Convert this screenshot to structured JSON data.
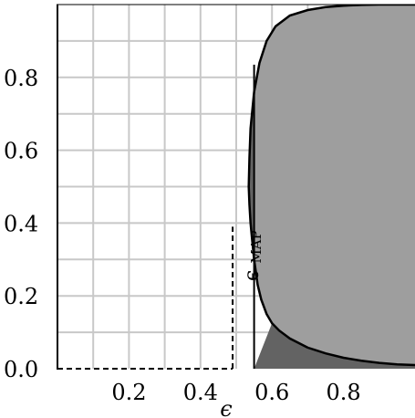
{
  "chart_data": {
    "type": "area",
    "title": "",
    "xlabel": "ϵ",
    "ylabel": "",
    "xlim": [
      0,
      1
    ],
    "ylim": [
      0,
      1
    ],
    "grid": true,
    "grid_step": 0.1,
    "x_ticks": [
      0.2,
      0.4,
      0.6,
      0.8
    ],
    "x_tick_labels": [
      "0.2",
      "0.4",
      "0.6",
      "0.8"
    ],
    "y_ticks": [
      0.0,
      0.2,
      0.4,
      0.6,
      0.8
    ],
    "y_tick_labels": [
      "0.0",
      "0.2",
      "0.4",
      "0.6",
      "0.8"
    ],
    "curve": {
      "x": [
        1.0,
        0.95,
        0.9,
        0.85,
        0.8,
        0.75,
        0.7,
        0.65,
        0.62,
        0.6,
        0.585,
        0.57,
        0.56,
        0.55,
        0.545,
        0.54,
        0.537,
        0.535,
        0.537,
        0.54,
        0.55,
        0.565,
        0.585,
        0.61,
        0.65,
        0.7,
        0.75,
        0.8,
        0.85,
        0.9,
        0.95,
        1.0
      ],
      "y": [
        0.01,
        0.012,
        0.016,
        0.022,
        0.03,
        0.042,
        0.058,
        0.083,
        0.105,
        0.125,
        0.15,
        0.19,
        0.23,
        0.3,
        0.35,
        0.4,
        0.45,
        0.5,
        0.58,
        0.66,
        0.76,
        0.84,
        0.9,
        0.94,
        0.97,
        0.985,
        0.993,
        0.997,
        0.999,
        1.0,
        1.0,
        1.0
      ]
    },
    "epsilon_map": 0.49,
    "epsilon_map_height": 0.39,
    "shaded_split_x": 0.55,
    "annotations": [
      {
        "text": "ϵ",
        "subscript": "MAP"
      }
    ],
    "colors": {
      "light_region": "#9e9e9e",
      "dark_region": "#636363",
      "grid": "#c8c8c8",
      "outline": "#000000"
    }
  }
}
